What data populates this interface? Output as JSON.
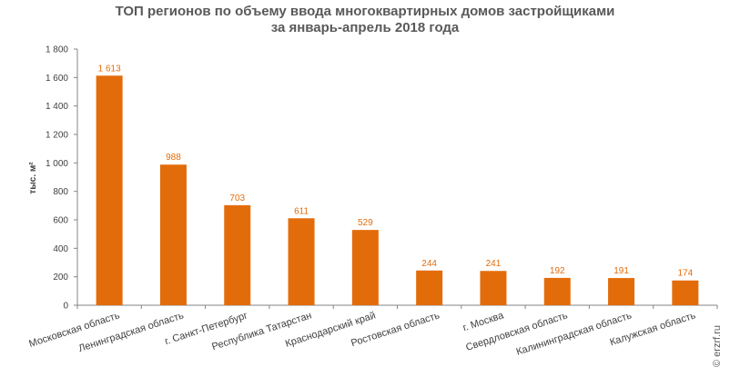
{
  "chart_data": {
    "type": "bar",
    "title": [
      "ТОП регионов по объему ввода многоквартирных домов застройщиками",
      "за январь-апрель 2018 года"
    ],
    "ylabel": "тыс. м²",
    "xlabel": "",
    "ylim": [
      0,
      1800
    ],
    "ytick_step": 200,
    "yticks": [
      "0",
      "200",
      "400",
      "600",
      "800",
      "1 000",
      "1 200",
      "1 400",
      "1 600",
      "1 800"
    ],
    "grid": false,
    "bar_color": "#E36C0A",
    "categories": [
      "Московская область",
      "Ленинградская область",
      "г. Санкт-Петербург",
      "Республика Татарстан",
      "Краснодарский край",
      "Ростовская область",
      "г. Москва",
      "Свердловская область",
      "Калининградская область",
      "Калужская область"
    ],
    "values": [
      1613,
      988,
      703,
      611,
      529,
      244,
      241,
      192,
      191,
      174
    ],
    "value_labels": [
      "1 613",
      "988",
      "703",
      "611",
      "529",
      "244",
      "241",
      "192",
      "191",
      "174"
    ],
    "label_color": "#E36C0A"
  },
  "watermark": "© erzrf.ru"
}
